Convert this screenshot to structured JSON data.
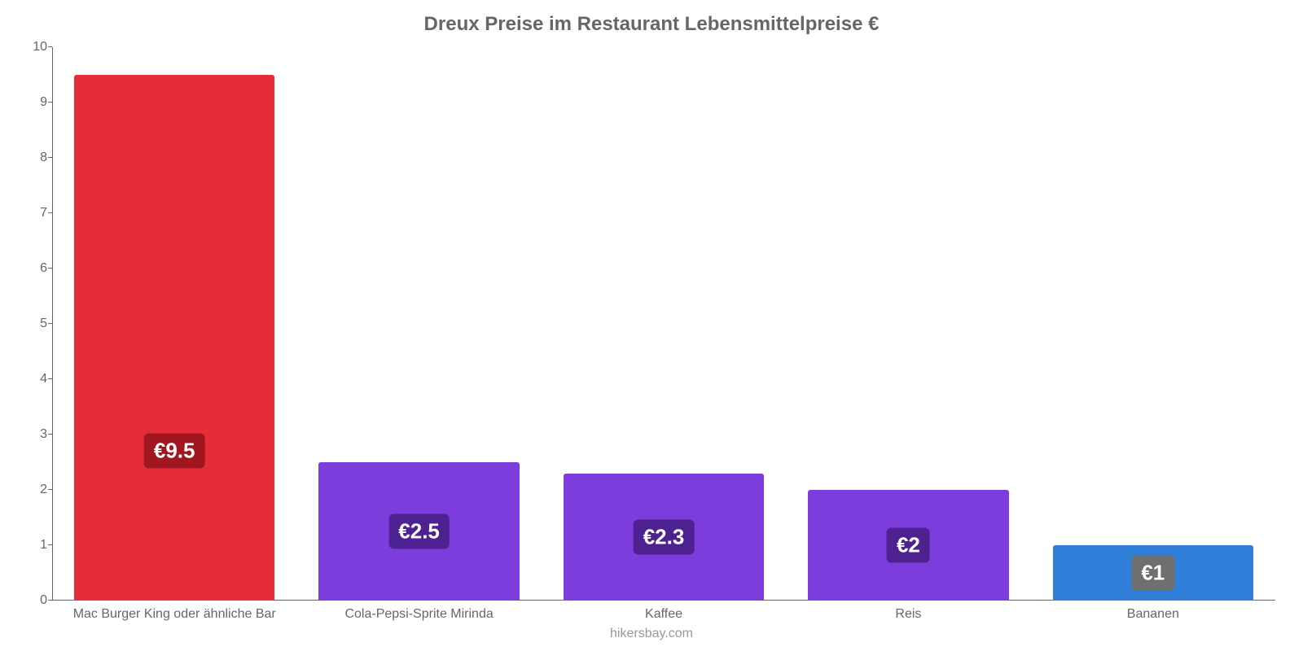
{
  "chart": {
    "type": "bar",
    "title": "Dreux Preise im Restaurant Lebensmittelpreise €",
    "title_color": "#666666",
    "title_fontsize": 24,
    "title_fontweight": "bold",
    "background_color": "#ffffff",
    "axis_line_color": "#666666",
    "ylim": [
      0,
      10
    ],
    "ytick_step": 1,
    "yticks": [
      0,
      1,
      2,
      3,
      4,
      5,
      6,
      7,
      8,
      9,
      10
    ],
    "ytick_labels": [
      "0",
      "1",
      "2",
      "3",
      "4",
      "5",
      "6",
      "7",
      "8",
      "9",
      "10"
    ],
    "tick_font_color": "#666666",
    "tick_fontsize": 16,
    "bar_width_ratio": 0.82,
    "currency_symbol": "€",
    "value_badge_fontsize": 26,
    "value_badge_text_color": "#ffffff",
    "xlabel_fontsize": 16,
    "xlabel_color": "#666666",
    "grid": false,
    "categories": [
      "Mac Burger King oder ähnliche Bar",
      "Cola-Pepsi-Sprite Mirinda",
      "Kaffee",
      "Reis",
      "Bananen"
    ],
    "values": [
      9.5,
      2.5,
      2.3,
      2,
      1
    ],
    "value_labels": [
      "€9.5",
      "€2.5",
      "€2.3",
      "€2",
      "€1"
    ],
    "bar_colors": [
      "#e52d39",
      "#7d3cdc",
      "#7d3cdc",
      "#7d3cdc",
      "#2f7ed8"
    ],
    "badge_bg_colors": [
      "#a01720",
      "#4e2191",
      "#4e2191",
      "#4e2191",
      "#6f6f6f"
    ],
    "badge_center_value": 5.4,
    "footer": "hikersbay.com",
    "footer_color": "#999999",
    "footer_fontsize": 16
  }
}
